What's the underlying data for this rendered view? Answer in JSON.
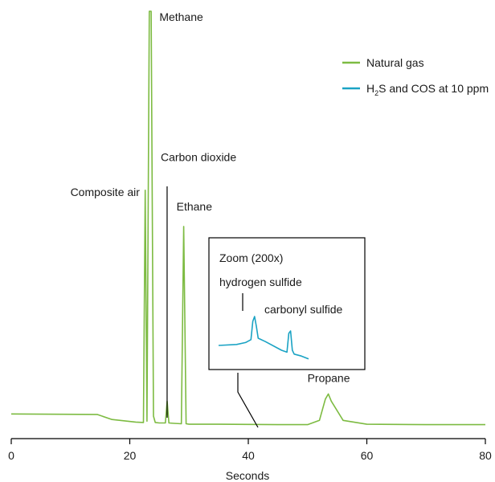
{
  "chart_data": {
    "type": "line",
    "xlabel": "Seconds",
    "xlim": [
      0,
      80
    ],
    "x_ticks": [
      "0",
      "20",
      "40",
      "60",
      "80"
    ],
    "grid": false,
    "legend_position": "top-right",
    "colors": {
      "natural_gas": "#7dbb42",
      "h2s_cos": "#1ba3c4",
      "annotation": "#000000"
    },
    "series": [
      {
        "name": "Natural gas",
        "x": [
          0,
          14.5,
          17,
          21,
          22.3,
          22.6,
          22.9,
          23.3,
          23.6,
          24,
          24.3,
          25,
          26,
          26.3,
          26.6,
          27.5,
          28.7,
          29.1,
          29.5,
          30,
          35,
          45,
          50,
          52,
          53,
          53.5,
          54,
          56,
          60,
          70,
          80
        ],
        "y": [
          5.5,
          5.4,
          4.2,
          3.6,
          3.5,
          58,
          3.8,
          100,
          100,
          5,
          3.5,
          3.4,
          3.4,
          8.5,
          3.4,
          3.3,
          3.2,
          49.5,
          3.2,
          3.1,
          3.1,
          3.0,
          3.0,
          4.0,
          9.0,
          10.2,
          8.5,
          4.0,
          3.1,
          3.0,
          3.0
        ]
      }
    ],
    "legend": [
      {
        "label": "Natural gas",
        "color": "#7dbb42"
      },
      {
        "label_main": "H",
        "label_sub": "2",
        "label_rest": "S and COS at 10 ppm",
        "color": "#1ba3c4"
      }
    ],
    "peak_labels": [
      {
        "text": "Methane",
        "x": 23.5,
        "y": 100
      },
      {
        "text": "Composite air",
        "x": 22.5,
        "y": 58
      },
      {
        "text": "Carbon dioxide",
        "x": 26.3,
        "y": 8.5
      },
      {
        "text": "Ethane",
        "x": 29.1,
        "y": 49.5
      },
      {
        "text": "Propane",
        "x": 53.5,
        "y": 10.2
      }
    ],
    "inset": {
      "title": "Zoom (200x)",
      "peaks": [
        "hydrogen sulfide",
        "carbonyl sulfide"
      ],
      "trace_x": [
        0,
        10,
        15,
        18,
        19,
        20,
        21,
        22,
        26,
        35,
        38,
        39,
        40,
        41,
        42,
        46,
        50
      ],
      "trace_y": [
        3.0,
        3.2,
        3.6,
        4.2,
        8.0,
        9.0,
        7.0,
        4.5,
        3.8,
        2.0,
        1.6,
        5.5,
        6.0,
        2.0,
        1.2,
        0.8,
        0.2
      ],
      "xlim": [
        0,
        50
      ],
      "ylim": [
        0,
        12
      ]
    }
  }
}
